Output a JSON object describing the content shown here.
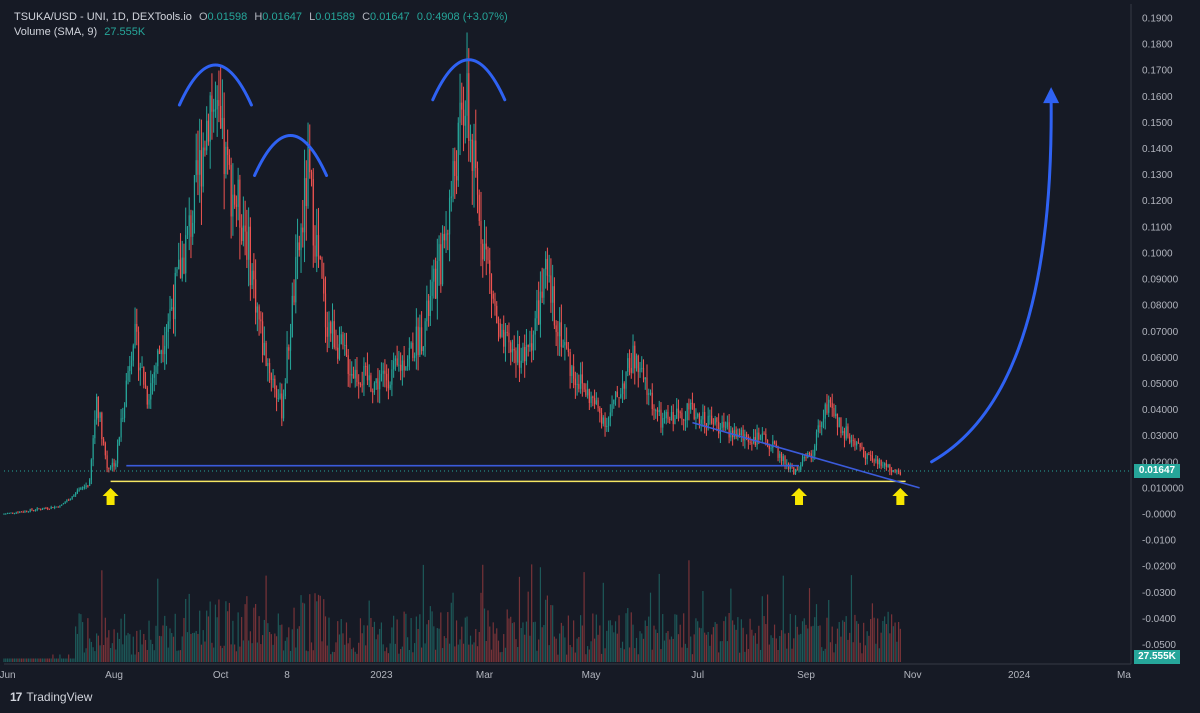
{
  "legend": {
    "symbol": "TSUKA/USD - UNI, 1D, DEXTools.io",
    "o_label": "O",
    "o": "0.01598",
    "h_label": "H",
    "h": "0.01647",
    "l_label": "L",
    "l": "0.01589",
    "c_label": "C",
    "c": "0.01647",
    "change": "0.0:4908 (+3.07%)",
    "volume_label": "Volume (SMA, 9)",
    "volume_value": "27.555K"
  },
  "price_tag": "0.01647",
  "volume_tag": "27.555K",
  "branding": {
    "name": "TradingView",
    "mark": "17"
  },
  "colors": {
    "up": "#26a69a",
    "down": "#ef5350",
    "support": "#f5e663",
    "neckline": "#3b5bdb",
    "annotation": "#2f62f3",
    "arrow_yellow": "#f7e600"
  },
  "chart_data": {
    "type": "candlestick",
    "title": "",
    "xlabel": "",
    "ylabel": "",
    "y_ticks": [
      "0.1900",
      "0.1800",
      "0.1700",
      "0.1600",
      "0.1500",
      "0.1400",
      "0.1300",
      "0.1200",
      "0.1100",
      "0.1000",
      "0.09000",
      "0.08000",
      "0.07000",
      "0.06000",
      "0.05000",
      "0.04000",
      "0.03000",
      "0.02000",
      "0.010000",
      "-0.0000",
      "-0.0100",
      "-0.0200",
      "-0.0300",
      "-0.0400",
      "-0.0500"
    ],
    "y_tick_values": [
      0.19,
      0.18,
      0.17,
      0.16,
      0.15,
      0.14,
      0.13,
      0.12,
      0.11,
      0.1,
      0.09,
      0.08,
      0.07,
      0.06,
      0.05,
      0.04,
      0.03,
      0.02,
      0.01,
      0,
      -0.01,
      -0.02,
      -0.03,
      -0.04,
      -0.05
    ],
    "ylim": [
      -0.055,
      0.195
    ],
    "x_ticks": [
      "Jun",
      "Aug",
      "Oct",
      "8",
      "2023",
      "Mar",
      "May",
      "Jul",
      "Sep",
      "Nov",
      "2024",
      "Ma"
    ],
    "x_tick_dates": [
      "2022-06-01",
      "2022-08-01",
      "2022-10-01",
      "2022-11-08",
      "2023-01-01",
      "2023-03-01",
      "2023-05-01",
      "2023-07-01",
      "2023-09-01",
      "2023-11-01",
      "2024-01-01",
      "2024-03-01"
    ],
    "xlim": [
      "2022-05-30",
      "2024-03-05"
    ],
    "price_path": [
      [
        "2022-05-30",
        0.0
      ],
      [
        "2022-07-01",
        0.003
      ],
      [
        "2022-07-18",
        0.012
      ],
      [
        "2022-07-22",
        0.045
      ],
      [
        "2022-07-28",
        0.018
      ],
      [
        "2022-08-02",
        0.02
      ],
      [
        "2022-08-12",
        0.07
      ],
      [
        "2022-08-20",
        0.045
      ],
      [
        "2022-09-05",
        0.085
      ],
      [
        "2022-09-15",
        0.115
      ],
      [
        "2022-09-25",
        0.16
      ],
      [
        "2022-10-05",
        0.13
      ],
      [
        "2022-10-15",
        0.11
      ],
      [
        "2022-10-25",
        0.065
      ],
      [
        "2022-11-05",
        0.04
      ],
      [
        "2022-11-12",
        0.085
      ],
      [
        "2022-11-20",
        0.13
      ],
      [
        "2022-11-30",
        0.075
      ],
      [
        "2022-12-15",
        0.055
      ],
      [
        "2022-12-28",
        0.05
      ],
      [
        "2023-01-10",
        0.055
      ],
      [
        "2023-01-25",
        0.07
      ],
      [
        "2023-02-05",
        0.1
      ],
      [
        "2023-02-18",
        0.16
      ],
      [
        "2023-02-25",
        0.12
      ],
      [
        "2023-03-10",
        0.065
      ],
      [
        "2023-03-25",
        0.06
      ],
      [
        "2023-04-05",
        0.09
      ],
      [
        "2023-04-20",
        0.055
      ],
      [
        "2023-05-10",
        0.035
      ],
      [
        "2023-05-25",
        0.06
      ],
      [
        "2023-06-10",
        0.035
      ],
      [
        "2023-06-25",
        0.04
      ],
      [
        "2023-07-10",
        0.035
      ],
      [
        "2023-07-25",
        0.03
      ],
      [
        "2023-08-10",
        0.028
      ],
      [
        "2023-08-25",
        0.016
      ],
      [
        "2023-09-05",
        0.024
      ],
      [
        "2023-09-12",
        0.042
      ],
      [
        "2023-09-25",
        0.03
      ],
      [
        "2023-10-10",
        0.02
      ],
      [
        "2023-10-25",
        0.0165
      ]
    ],
    "annotations": {
      "support_line": {
        "from": "2022-07-30",
        "to": "2023-10-28",
        "y": 0.0125
      },
      "neckline": {
        "from": "2022-08-08",
        "to": "2023-08-28",
        "y": 0.0185
      },
      "descending_trendline": {
        "from": [
          "2023-06-28",
          0.035
        ],
        "to": [
          "2023-11-05",
          0.01
        ]
      },
      "arcs_over_peaks": [
        "2022-09-28",
        "2022-11-10",
        "2023-02-20"
      ],
      "up_arrows_at": [
        "2022-07-30",
        "2023-08-28",
        "2023-10-25"
      ],
      "projection_arrow": "curved upward toward 0.165 by 2024-01-15"
    }
  }
}
